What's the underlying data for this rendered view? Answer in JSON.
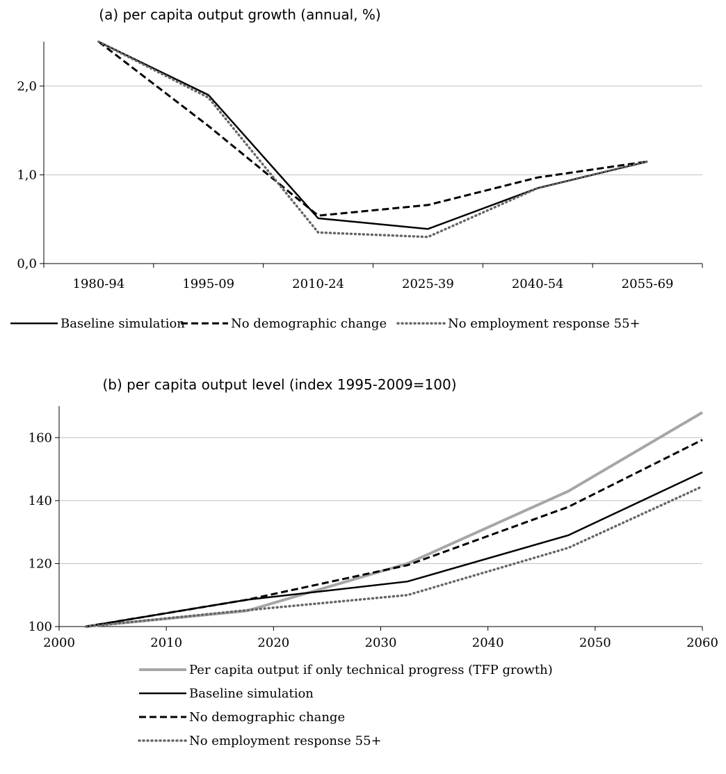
{
  "chart_data": [
    {
      "type": "line",
      "title": "(a) per capita output growth (annual, %)",
      "categories": [
        "1980-94",
        "1995-09",
        "2010-24",
        "2025-39",
        "2040-54",
        "2055-69"
      ],
      "y_ticks": [
        "0,0",
        "1,0",
        "2,0"
      ],
      "ylim": [
        0,
        2.5
      ],
      "grid": true,
      "legend_position": "bottom",
      "series": [
        {
          "name": "Baseline simulation",
          "style": "solid",
          "color": "#000000",
          "values": [
            2.5,
            1.9,
            0.51,
            0.39,
            0.85,
            1.15
          ]
        },
        {
          "name": "No demographic change",
          "style": "dashed",
          "color": "#000000",
          "values": [
            2.5,
            1.55,
            0.54,
            0.66,
            0.97,
            1.15
          ]
        },
        {
          "name": "No employment response 55+",
          "style": "dotted",
          "color": "#666666",
          "values": [
            2.5,
            1.87,
            0.35,
            0.3,
            0.85,
            1.15
          ]
        }
      ]
    },
    {
      "type": "line",
      "title": "(b) per capita output level (index 1995-2009=100)",
      "x_ticks": [
        "2000",
        "2010",
        "2020",
        "2030",
        "2040",
        "2050",
        "2060"
      ],
      "y_ticks": [
        "100",
        "120",
        "140",
        "160"
      ],
      "xlim": [
        2000,
        2060
      ],
      "ylim": [
        100,
        170
      ],
      "grid": true,
      "legend_position": "bottom",
      "series": [
        {
          "name": "Per capita output if only technical progress (TFP growth)",
          "style": "solid-thick",
          "color": "#a6a6a6",
          "x": [
            2002.5,
            2017.5,
            2032.5,
            2047.5,
            2060
          ],
          "y": [
            100,
            105,
            120,
            143,
            168
          ]
        },
        {
          "name": "Baseline simulation",
          "style": "solid",
          "color": "#000000",
          "x": [
            2002.5,
            2017.5,
            2032.5,
            2047.5,
            2060
          ],
          "y": [
            100,
            108.5,
            114.3,
            129,
            149
          ]
        },
        {
          "name": "No demographic change",
          "style": "dashed",
          "color": "#000000",
          "x": [
            2002.5,
            2017.5,
            2032.5,
            2047.5,
            2060
          ],
          "y": [
            100,
            108.5,
            119.5,
            138,
            159.3
          ]
        },
        {
          "name": "No employment response 55+",
          "style": "dotted",
          "color": "#666666",
          "x": [
            2002.5,
            2017.5,
            2032.5,
            2047.5,
            2060
          ],
          "y": [
            100,
            105.2,
            110,
            125,
            144.5
          ]
        }
      ]
    }
  ]
}
